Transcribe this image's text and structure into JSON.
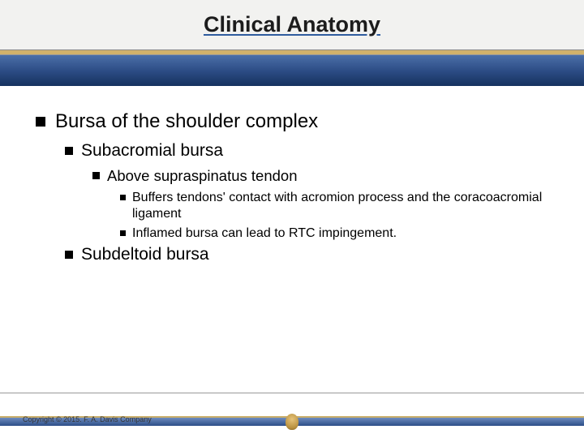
{
  "title": "Clinical Anatomy",
  "colors": {
    "header_bg": "#f2f2f0",
    "underline": "#2f5c9e",
    "gold_band": "#d1b26b",
    "blue_band_top": "#4b6fa8",
    "blue_band_bottom": "#16325f",
    "bullet": "#000000",
    "text": "#000000"
  },
  "fontsizes": {
    "title": 27,
    "l1": 24,
    "l2": 21,
    "l3": 18.5,
    "l4": 16,
    "copyright": 9
  },
  "content": {
    "l1": "Bursa of the shoulder complex",
    "l2a": "Subacromial bursa",
    "l3a": "Above supraspinatus tendon",
    "l4a": "Buffers tendons' contact with acromion process and the coracoacromial ligament",
    "l4b": "Inflamed bursa can lead to RTC impingement.",
    "l2b": "Subdeltoid bursa"
  },
  "footer": {
    "copyright": "Copyright © 2015. F. A. Davis Company"
  }
}
